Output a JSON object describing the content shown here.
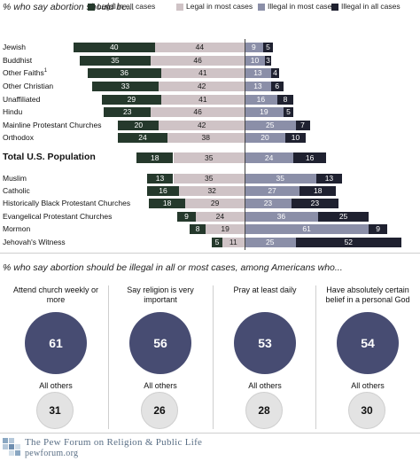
{
  "chart_data": [
    {
      "type": "bar",
      "title": "% who say abortion should be...",
      "series": [
        {
          "name": "Legal in all cases",
          "color": "#25392c"
        },
        {
          "name": "Legal in most cases",
          "color": "#cfc3c6"
        },
        {
          "name": "Illegal in most cases",
          "color": "#8b8fa8"
        },
        {
          "name": "Illegal in all cases",
          "color": "#1f2130"
        }
      ],
      "categories": [
        "Jewish",
        "Buddhist",
        "Other Faiths",
        "Other Christian",
        "Unaffiliated",
        "Hindu",
        "Mainline Protestant Churches",
        "Orthodox",
        "Total U.S. Population",
        "Muslim",
        "Catholic",
        "Historically Black Protestant Churches",
        "Evangelical Protestant Churches",
        "Mormon",
        "Jehovah's Witness"
      ],
      "category_superscripts": {
        "Other Faiths": "1"
      },
      "rows": [
        {
          "label": "Jewish",
          "values": [
            40,
            44,
            9,
            5
          ]
        },
        {
          "label": "Buddhist",
          "values": [
            35,
            46,
            10,
            3
          ]
        },
        {
          "label": "Other Faiths",
          "values": [
            36,
            41,
            13,
            4
          ]
        },
        {
          "label": "Other Christian",
          "values": [
            33,
            42,
            13,
            6
          ]
        },
        {
          "label": "Unaffiliated",
          "values": [
            29,
            41,
            16,
            8
          ]
        },
        {
          "label": "Hindu",
          "values": [
            23,
            46,
            19,
            5
          ]
        },
        {
          "label": "Mainline Protestant Churches",
          "values": [
            20,
            42,
            25,
            7
          ]
        },
        {
          "label": "Orthodox",
          "values": [
            24,
            38,
            20,
            10
          ]
        },
        {
          "label": "Total U.S. Population",
          "values": [
            18,
            35,
            24,
            16
          ],
          "emphasis": true
        },
        {
          "label": "Muslim",
          "values": [
            13,
            35,
            35,
            13
          ]
        },
        {
          "label": "Catholic",
          "values": [
            16,
            32,
            27,
            18
          ]
        },
        {
          "label": "Historically Black Protestant Churches",
          "values": [
            18,
            29,
            23,
            23
          ]
        },
        {
          "label": "Evangelical Protestant Churches",
          "values": [
            9,
            24,
            36,
            25
          ]
        },
        {
          "label": "Mormon",
          "values": [
            8,
            19,
            61,
            9
          ]
        },
        {
          "label": "Jehovah's Witness",
          "values": [
            5,
            11,
            25,
            52
          ]
        }
      ]
    },
    {
      "type": "bubble",
      "title": "% who say abortion should be illegal in all or most cases, among Americans who...",
      "groups": [
        {
          "label": "Attend church weekly or more",
          "value": 61,
          "others_label": "All others",
          "others_value": 31
        },
        {
          "label": "Say religion is very important",
          "value": 56,
          "others_label": "All others",
          "others_value": 26
        },
        {
          "label": "Pray at least daily",
          "value": 53,
          "others_label": "All others",
          "others_value": 28
        },
        {
          "label": "Have absolutely certain belief in a personal God",
          "value": 54,
          "others_label": "All others",
          "others_value": 30
        }
      ]
    }
  ],
  "footer": {
    "org_name": "The Pew Forum on Religion & Public Life",
    "url": "pewforum.org"
  }
}
